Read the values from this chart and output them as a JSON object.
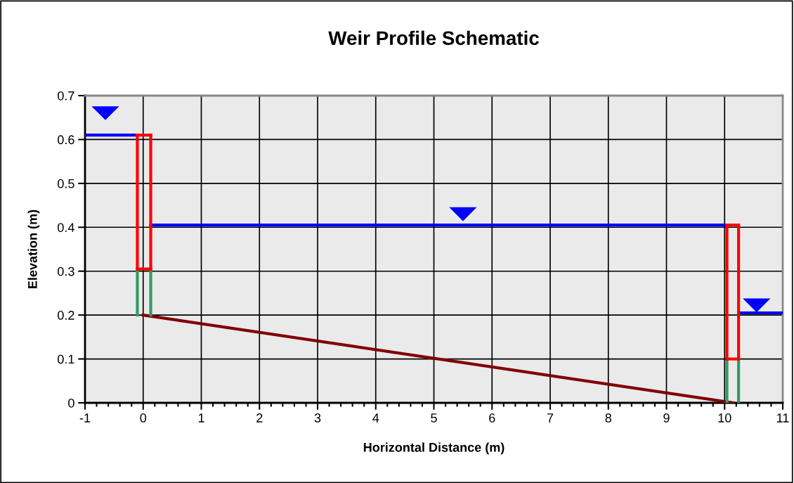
{
  "chart_data": {
    "type": "line",
    "title": "Weir Profile Schematic",
    "xlabel": "Horizontal Distance (m)",
    "ylabel": "Elevation (m)",
    "xlim": [
      -1,
      11
    ],
    "xticks": [
      -1,
      0,
      1,
      2,
      3,
      4,
      5,
      6,
      7,
      8,
      9,
      10,
      11
    ],
    "ylim": [
      0,
      0.7
    ],
    "yticks": [
      0,
      0.1,
      0.2,
      0.3,
      0.4,
      0.5,
      0.6,
      0.7
    ],
    "grid": true,
    "line_style": "solid",
    "series": [
      {
        "color": "#0000ff",
        "x": [
          -1,
          -0.1
        ],
        "values": [
          0.61,
          0.61
        ]
      },
      {
        "color": "#0000ff",
        "x": [
          0.13,
          10.04
        ],
        "values": [
          0.405,
          0.405
        ]
      },
      {
        "color": "#0000ff",
        "x": [
          10.24,
          11
        ],
        "values": [
          0.205,
          0.205
        ]
      },
      {
        "color": "#800000",
        "x": [
          0,
          10.15
        ],
        "values": [
          0.2,
          0
        ]
      },
      {
        "color": "#339966",
        "x": [
          -0.1,
          -0.1
        ],
        "values": [
          0.2,
          0.305
        ]
      },
      {
        "color": "#339966",
        "x": [
          0.13,
          0.13
        ],
        "values": [
          0.2,
          0.305
        ]
      },
      {
        "color": "#339966",
        "x": [
          10.04,
          10.04
        ],
        "values": [
          0,
          0.1
        ]
      },
      {
        "color": "#339966",
        "x": [
          10.24,
          10.24
        ],
        "values": [
          0,
          0.1
        ]
      },
      {
        "color": "#ff0000",
        "x": [
          -0.1,
          0.13
        ],
        "values": [
          0.61,
          0.61
        ]
      },
      {
        "color": "#ff0000",
        "x": [
          -0.1,
          0.13
        ],
        "values": [
          0.305,
          0.305
        ]
      },
      {
        "color": "#ff0000",
        "x": [
          -0.1,
          -0.1
        ],
        "values": [
          0.305,
          0.61
        ]
      },
      {
        "color": "#ff0000",
        "x": [
          0.13,
          0.13
        ],
        "values": [
          0.305,
          0.61
        ]
      },
      {
        "color": "#ff0000",
        "x": [
          10.04,
          10.24
        ],
        "values": [
          0.405,
          0.405
        ]
      },
      {
        "color": "#ff0000",
        "x": [
          10.04,
          10.24
        ],
        "values": [
          0.1,
          0.1
        ]
      },
      {
        "color": "#ff0000",
        "x": [
          10.04,
          10.04
        ],
        "values": [
          0.1,
          0.405
        ]
      },
      {
        "color": "#ff0000",
        "x": [
          10.24,
          10.24
        ],
        "values": [
          0.1,
          0.405
        ]
      },
      {
        "type": "scatter",
        "color": "#0000ff",
        "marker": "triangle",
        "x": [
          -0.65,
          5.5,
          10.55
        ],
        "values": [
          0.66,
          0.43,
          0.222
        ]
      }
    ]
  }
}
